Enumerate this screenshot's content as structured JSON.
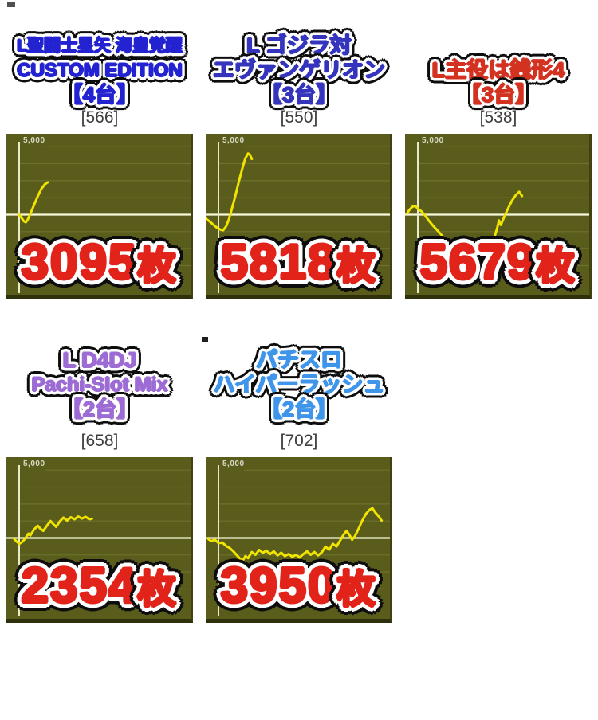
{
  "page_background": "#ffffff",
  "result_color": "#e2231a",
  "chart_style": {
    "background": "#5a5c1b",
    "grid_color": "#6e702d",
    "zero_line_color": "#f8f8da",
    "axis_color": "#eaeacb",
    "series_color": "#f0e400",
    "label_color": "#d9d9c6",
    "bottom_edge_color": "#2f300c",
    "ymax": 5950,
    "ymin": -5950,
    "gridline_values": [
      5000,
      3750,
      2500,
      1250,
      -1250,
      -2500,
      -3750
    ]
  },
  "panels": [
    {
      "title_lines": [
        "L聖闘士星矢 海皇覚醒",
        "CUSTOM EDITION",
        "【4台】"
      ],
      "title_color": "#2323d1",
      "sample_count": "[566]",
      "result_value": "3095",
      "result_unit": "枚",
      "result_color": "#e2231a"
    },
    {
      "title_lines": [
        "L ゴジラ対",
        "エヴァンゲリオン",
        "【3台】"
      ],
      "title_color": "#3434bd",
      "sample_count": "[550]",
      "result_value": "5818",
      "result_unit": "枚",
      "result_color": "#e2231a"
    },
    {
      "title_lines": [
        "L主役は銭形4",
        "【3台】"
      ],
      "title_color": "#d33221",
      "sample_count": "[538]",
      "result_value": "5679",
      "result_unit": "枚",
      "result_color": "#e2231a"
    },
    {
      "title_lines": [
        "L D4DJ",
        "Pachi-Slot Mix",
        "【2台】"
      ],
      "title_color": "#9c6cd4",
      "sample_count": "[658]",
      "result_value": "2354",
      "result_unit": "枚",
      "result_color": "#e2231a"
    },
    {
      "title_lines": [
        "パチスロ",
        "ハイパーラッシュ",
        "【2台】"
      ],
      "title_color": "#3e95ea",
      "sample_count": "[702]",
      "result_value": "3950",
      "result_unit": "枚",
      "result_color": "#e2231a"
    }
  ],
  "chart_data": [
    {
      "type": "line",
      "title": "L聖闘士星矢 海皇覚醒 CUSTOM EDITION 【4台】",
      "sample_label": "[566]",
      "final_payout_label": "3095枚",
      "y_axis_top_label": "5,000",
      "ylim": [
        -5950,
        5950
      ],
      "zero_line": true,
      "grid": true,
      "points_x_pct_value": [
        [
          7,
          0
        ],
        [
          8,
          -200
        ],
        [
          9.5,
          -480
        ],
        [
          10.5,
          -560
        ],
        [
          11.5,
          -380
        ],
        [
          13,
          60
        ],
        [
          15,
          700
        ],
        [
          17,
          1350
        ],
        [
          19,
          1900
        ],
        [
          21,
          2250
        ],
        [
          22.5,
          2380
        ]
      ]
    },
    {
      "type": "line",
      "title": "L ゴジラ対 エヴァンゲリオン 【3台】",
      "sample_label": "[550]",
      "final_payout_label": "5818枚",
      "y_axis_top_label": "5,000",
      "ylim": [
        -5950,
        5950
      ],
      "zero_line": true,
      "grid": true,
      "points_x_pct_value": [
        [
          0,
          -280
        ],
        [
          2,
          -480
        ],
        [
          4,
          -720
        ],
        [
          6,
          -950
        ],
        [
          8,
          -1100
        ],
        [
          9.5,
          -1150
        ],
        [
          11,
          -880
        ],
        [
          12.5,
          -380
        ],
        [
          14,
          320
        ],
        [
          16,
          1350
        ],
        [
          18,
          2450
        ],
        [
          20,
          3450
        ],
        [
          21.5,
          4150
        ],
        [
          23,
          4500
        ],
        [
          24,
          4420
        ],
        [
          25,
          4100
        ]
      ]
    },
    {
      "type": "line",
      "title": "L主役は銭形4 【3台】",
      "sample_label": "[538]",
      "final_payout_label": "5679枚",
      "y_axis_top_label": "5,000",
      "ylim": [
        -5950,
        5950
      ],
      "zero_line": true,
      "grid": true,
      "points_x_pct_value": [
        [
          1,
          80
        ],
        [
          2.5,
          380
        ],
        [
          4,
          580
        ],
        [
          5.5,
          650
        ],
        [
          7,
          430
        ],
        [
          9,
          230
        ],
        [
          11,
          -80
        ],
        [
          13,
          -450
        ],
        [
          15,
          -780
        ],
        [
          17,
          -1080
        ],
        [
          19,
          -1380
        ],
        [
          21,
          -1680
        ],
        [
          23,
          -1920
        ],
        [
          25,
          -2120
        ],
        [
          28,
          -2380
        ],
        [
          32,
          -2550
        ],
        [
          36,
          -2620
        ],
        [
          40,
          -2520
        ],
        [
          44,
          -2400
        ],
        [
          46.5,
          -2280
        ],
        [
          48,
          -1880
        ],
        [
          50,
          -1000
        ],
        [
          51,
          -420
        ],
        [
          52,
          -760
        ],
        [
          54,
          -120
        ],
        [
          56,
          480
        ],
        [
          58,
          1020
        ],
        [
          60,
          1420
        ],
        [
          62,
          1680
        ],
        [
          63.5,
          1380
        ]
      ]
    },
    {
      "type": "line",
      "title": "L D4DJ Pachi-Slot Mix 【2台】",
      "sample_label": "[658]",
      "final_payout_label": "2354枚",
      "y_axis_top_label": "5,000",
      "ylim": [
        -5950,
        5950
      ],
      "zero_line": true,
      "grid": true,
      "points_x_pct_value": [
        [
          4,
          -30
        ],
        [
          5.5,
          -250
        ],
        [
          7,
          -430
        ],
        [
          8.5,
          -300
        ],
        [
          10,
          -80
        ],
        [
          12,
          330
        ],
        [
          13,
          180
        ],
        [
          15,
          620
        ],
        [
          17,
          900
        ],
        [
          18.5,
          680
        ],
        [
          20,
          520
        ],
        [
          22,
          900
        ],
        [
          24,
          1250
        ],
        [
          25.5,
          1020
        ],
        [
          27,
          820
        ],
        [
          29,
          1220
        ],
        [
          31,
          1500
        ],
        [
          33,
          1280
        ],
        [
          35,
          1530
        ],
        [
          37,
          1380
        ],
        [
          39,
          1580
        ],
        [
          41,
          1430
        ],
        [
          43,
          1560
        ],
        [
          45,
          1380
        ],
        [
          46.5,
          1420
        ]
      ]
    },
    {
      "type": "line",
      "title": "パチスロ ハイパーラッシュ 【2台】",
      "sample_label": "[702]",
      "final_payout_label": "3950枚",
      "y_axis_top_label": "5,000",
      "ylim": [
        -5950,
        5950
      ],
      "zero_line": true,
      "grid": true,
      "points_x_pct_value": [
        [
          1,
          -30
        ],
        [
          3,
          -230
        ],
        [
          5,
          -130
        ],
        [
          7,
          -380
        ],
        [
          9,
          -330
        ],
        [
          11,
          -580
        ],
        [
          13,
          -730
        ],
        [
          15,
          -980
        ],
        [
          17,
          -1280
        ],
        [
          19,
          -1580
        ],
        [
          20,
          -1700
        ],
        [
          21.5,
          -1330
        ],
        [
          23,
          -1480
        ],
        [
          25,
          -1030
        ],
        [
          27,
          -1230
        ],
        [
          29,
          -880
        ],
        [
          31,
          -1080
        ],
        [
          33,
          -930
        ],
        [
          35,
          -1180
        ],
        [
          37,
          -980
        ],
        [
          39,
          -1280
        ],
        [
          41,
          -1080
        ],
        [
          43,
          -1330
        ],
        [
          45,
          -1180
        ],
        [
          47,
          -1380
        ],
        [
          49,
          -1230
        ],
        [
          51,
          -1430
        ],
        [
          53,
          -1180
        ],
        [
          55,
          -980
        ],
        [
          57,
          -1230
        ],
        [
          59,
          -1030
        ],
        [
          61,
          -1280
        ],
        [
          63,
          -1060
        ],
        [
          65,
          -630
        ],
        [
          67,
          -860
        ],
        [
          69,
          -430
        ],
        [
          71,
          -630
        ],
        [
          73,
          -180
        ],
        [
          75,
          280
        ],
        [
          76.5,
          530
        ],
        [
          78,
          230
        ],
        [
          79.5,
          -130
        ],
        [
          81,
          130
        ],
        [
          83,
          680
        ],
        [
          85,
          1280
        ],
        [
          87,
          1780
        ],
        [
          89,
          2080
        ],
        [
          90.5,
          2200
        ],
        [
          92,
          1880
        ],
        [
          94,
          1580
        ],
        [
          95.5,
          1280
        ]
      ]
    }
  ],
  "artifacts": [
    {
      "color": "#4f4f4f"
    },
    {
      "color": "#1f1f1f"
    }
  ]
}
